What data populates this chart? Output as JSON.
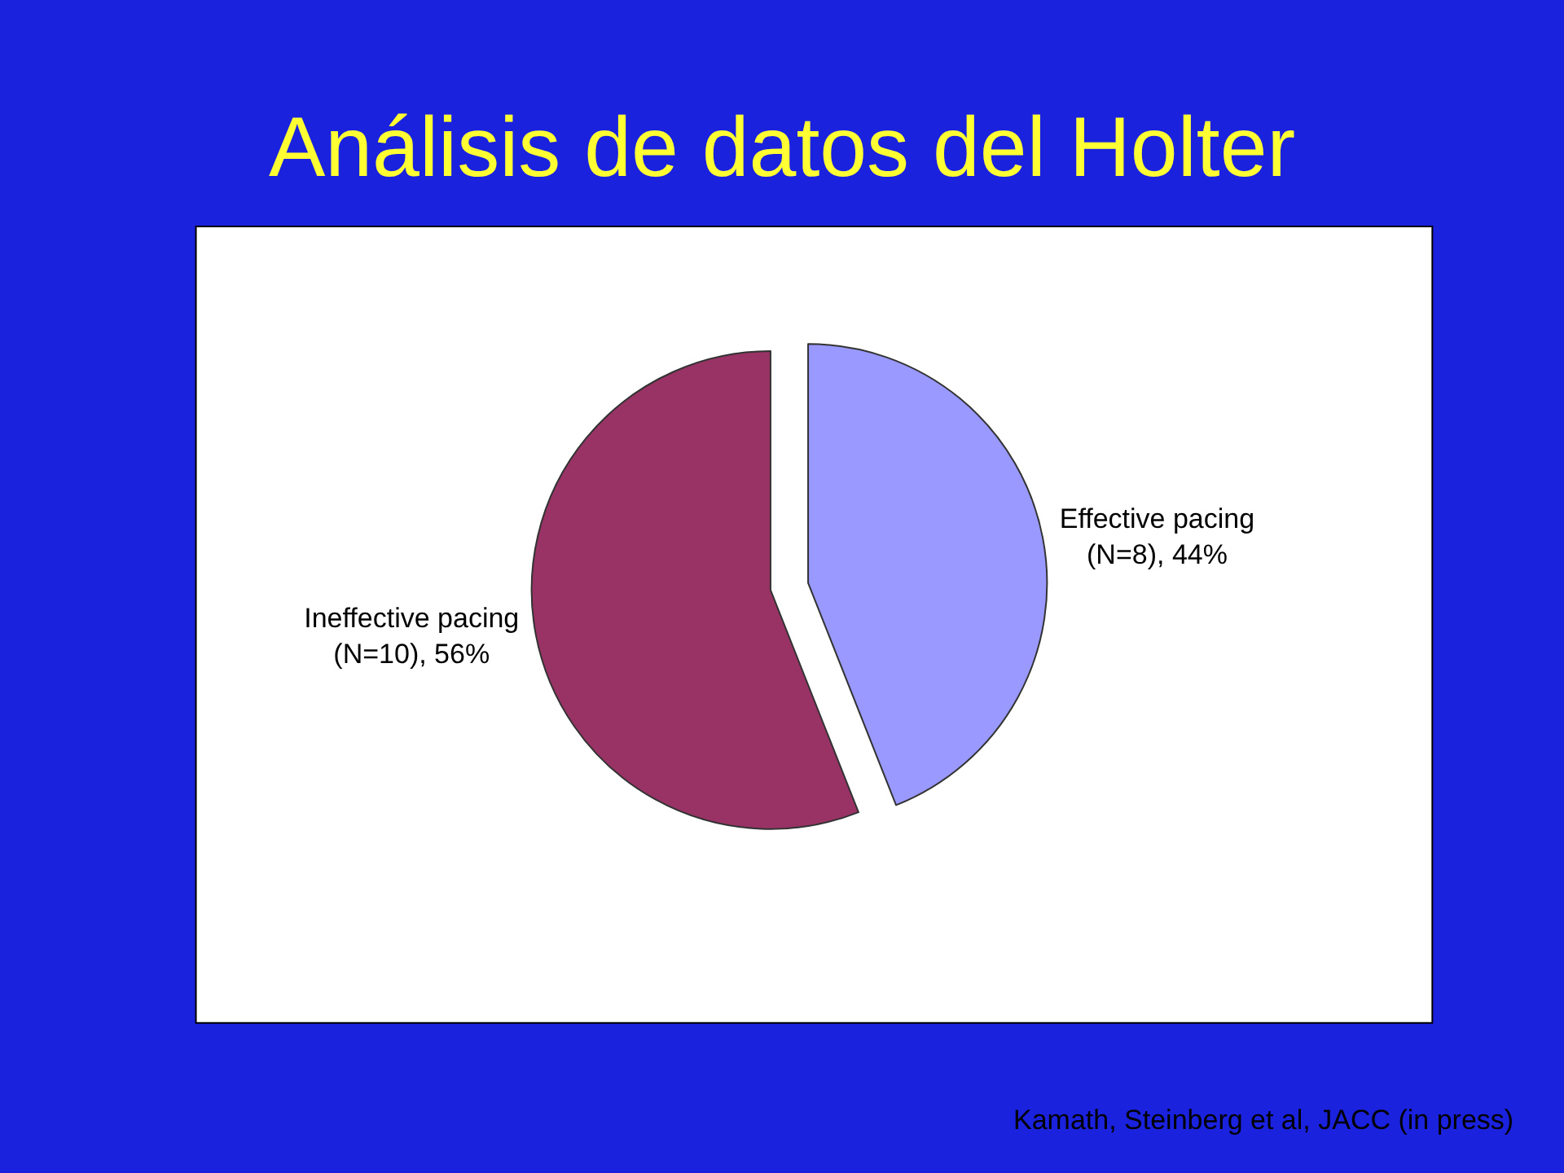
{
  "chart_data": {
    "type": "pie",
    "title": "Análisis de datos del Holter",
    "categories": [
      "Effective pacing",
      "Ineffective pacing"
    ],
    "values": [
      44,
      56
    ],
    "value_labels": [
      "(N=8), 44%",
      "(N=10), 56%"
    ],
    "colors": [
      "#9999ff",
      "#993366"
    ],
    "legend": false,
    "annotations": [
      "Kamath, Steinberg et al, JACC (in press)"
    ]
  }
}
